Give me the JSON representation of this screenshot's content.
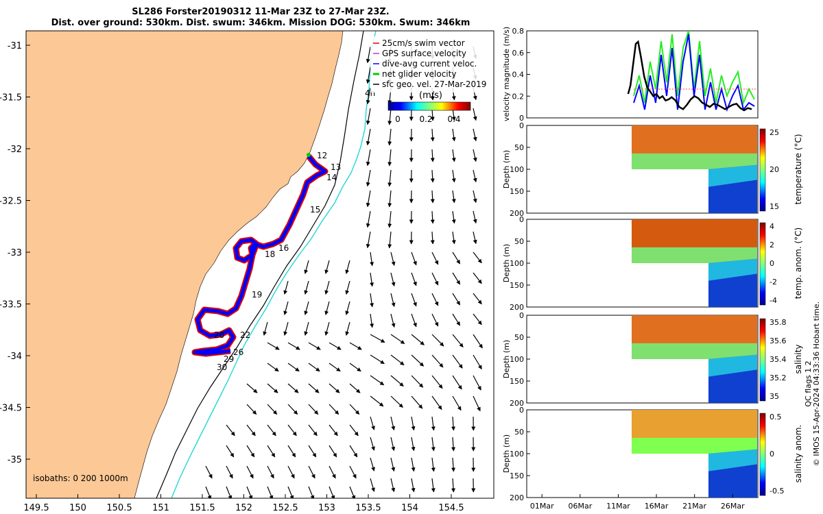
{
  "header": {
    "title_line1": "SL286 Forster20190312 11-Mar 23Z to 27-Mar 23Z.",
    "title_line2": "Dist. over ground: 530km. Dist. swum: 346km. Mission DOG: 530km. Swum: 346km"
  },
  "map": {
    "lon_ticks": [
      "149.5",
      "150",
      "150.5",
      "151",
      "151.5",
      "152",
      "152.5",
      "153",
      "153.5",
      "154",
      "154.5"
    ],
    "lat_ticks": [
      "-31",
      "-31.5",
      "-32",
      "-32.5",
      "-33",
      "-33.5",
      "-34",
      "-34.5",
      "-35"
    ],
    "legend": [
      {
        "label": "25cm/s swim vector",
        "color": "#e00000"
      },
      {
        "label": "GPS surface velocity",
        "color": "#cc33cc"
      },
      {
        "label": "dive-avg current veloc.",
        "color": "#0000ff"
      },
      {
        "label": "net glider velocity",
        "color": "#00cc00"
      },
      {
        "label": "sfc geo. vel. 27-Mar-2019",
        "color": "#000000"
      }
    ],
    "colorbar_title": "(m/s)",
    "colorbar_ticks": [
      "0",
      "0.2",
      "0.4"
    ],
    "isobaths_label": "isobaths: 0   200  1000m",
    "track_labels": [
      "12",
      "13",
      "14",
      "15",
      "16",
      "18",
      "19",
      "20",
      "22",
      "26",
      "29",
      "30",
      "4h"
    ],
    "colors": {
      "land": "#fbc896",
      "track_red": "#dd0000",
      "track_blue": "#0000ff",
      "isobath_200": "#000000",
      "isobath_1000": "#22d6d6"
    }
  },
  "chart_data": [
    {
      "type": "line",
      "ylabel": "velocity magnitude (m/s)",
      "ylim": [
        0,
        0.8
      ],
      "yticks": [
        "0",
        "0.2",
        "0.4",
        "0.6",
        "0.8"
      ],
      "series": [
        {
          "name": "",
          "color": "#000000",
          "x": [
            11.3,
            11.6,
            12.0,
            12.3,
            12.6,
            13.0,
            13.4,
            13.8,
            14.2,
            14.6,
            15.0,
            15.4,
            15.8,
            16.2,
            16.6,
            17.0,
            17.5,
            18.0,
            18.5,
            19.0,
            19.5,
            20.0,
            20.5,
            21.0,
            21.5,
            22.0,
            22.5,
            23.0,
            23.5,
            24.0,
            24.5,
            25.0,
            25.5,
            26.0,
            26.5,
            27.0,
            27.5
          ],
          "y": [
            0.22,
            0.3,
            0.52,
            0.68,
            0.7,
            0.55,
            0.38,
            0.28,
            0.24,
            0.2,
            0.22,
            0.18,
            0.2,
            0.16,
            0.17,
            0.19,
            0.16,
            0.1,
            0.08,
            0.12,
            0.17,
            0.2,
            0.18,
            0.14,
            0.12,
            0.1,
            0.13,
            0.12,
            0.1,
            0.08,
            0.1,
            0.12,
            0.13,
            0.09,
            0.07,
            0.09,
            0.08
          ]
        }
      ]
    },
    {
      "type": "heatmap",
      "ylabel": "Depth (m)",
      "yticks": [
        "0",
        "50",
        "100",
        "150",
        "200"
      ],
      "colorbar_label": "temperature (°C)",
      "colorbar_ticks": [
        "15",
        "20",
        "25"
      ],
      "x_range_days": [
        11.3,
        27.7
      ],
      "y_range_m": [
        0,
        200
      ]
    },
    {
      "type": "heatmap",
      "ylabel": "Depth (m)",
      "yticks": [
        "0",
        "50",
        "100",
        "150",
        "200"
      ],
      "colorbar_label": "temp. anom. (°C)",
      "colorbar_ticks": [
        "-4",
        "-2",
        "0",
        "2",
        "4"
      ]
    },
    {
      "type": "heatmap",
      "ylabel": "Depth (m)",
      "yticks": [
        "0",
        "50",
        "100",
        "150",
        "200"
      ],
      "colorbar_label": "salinity",
      "colorbar_ticks": [
        "35",
        "35.2",
        "35.4",
        "35.6",
        "35.8"
      ]
    },
    {
      "type": "heatmap",
      "ylabel": "Depth (m)",
      "yticks": [
        "0",
        "50",
        "100",
        "150",
        "200"
      ],
      "colorbar_label": "salinity anom.",
      "colorbar_ticks": [
        "-0.5",
        "0",
        "0.5"
      ],
      "xticks": [
        "01Mar",
        "06Mar",
        "11Mar",
        "16Mar",
        "21Mar",
        "26Mar"
      ]
    }
  ],
  "footer": {
    "side_note_1": "QC flags 1  2",
    "side_note_2": "© IMOS 15-Apr-2024 04:33:36 Hobart time."
  }
}
